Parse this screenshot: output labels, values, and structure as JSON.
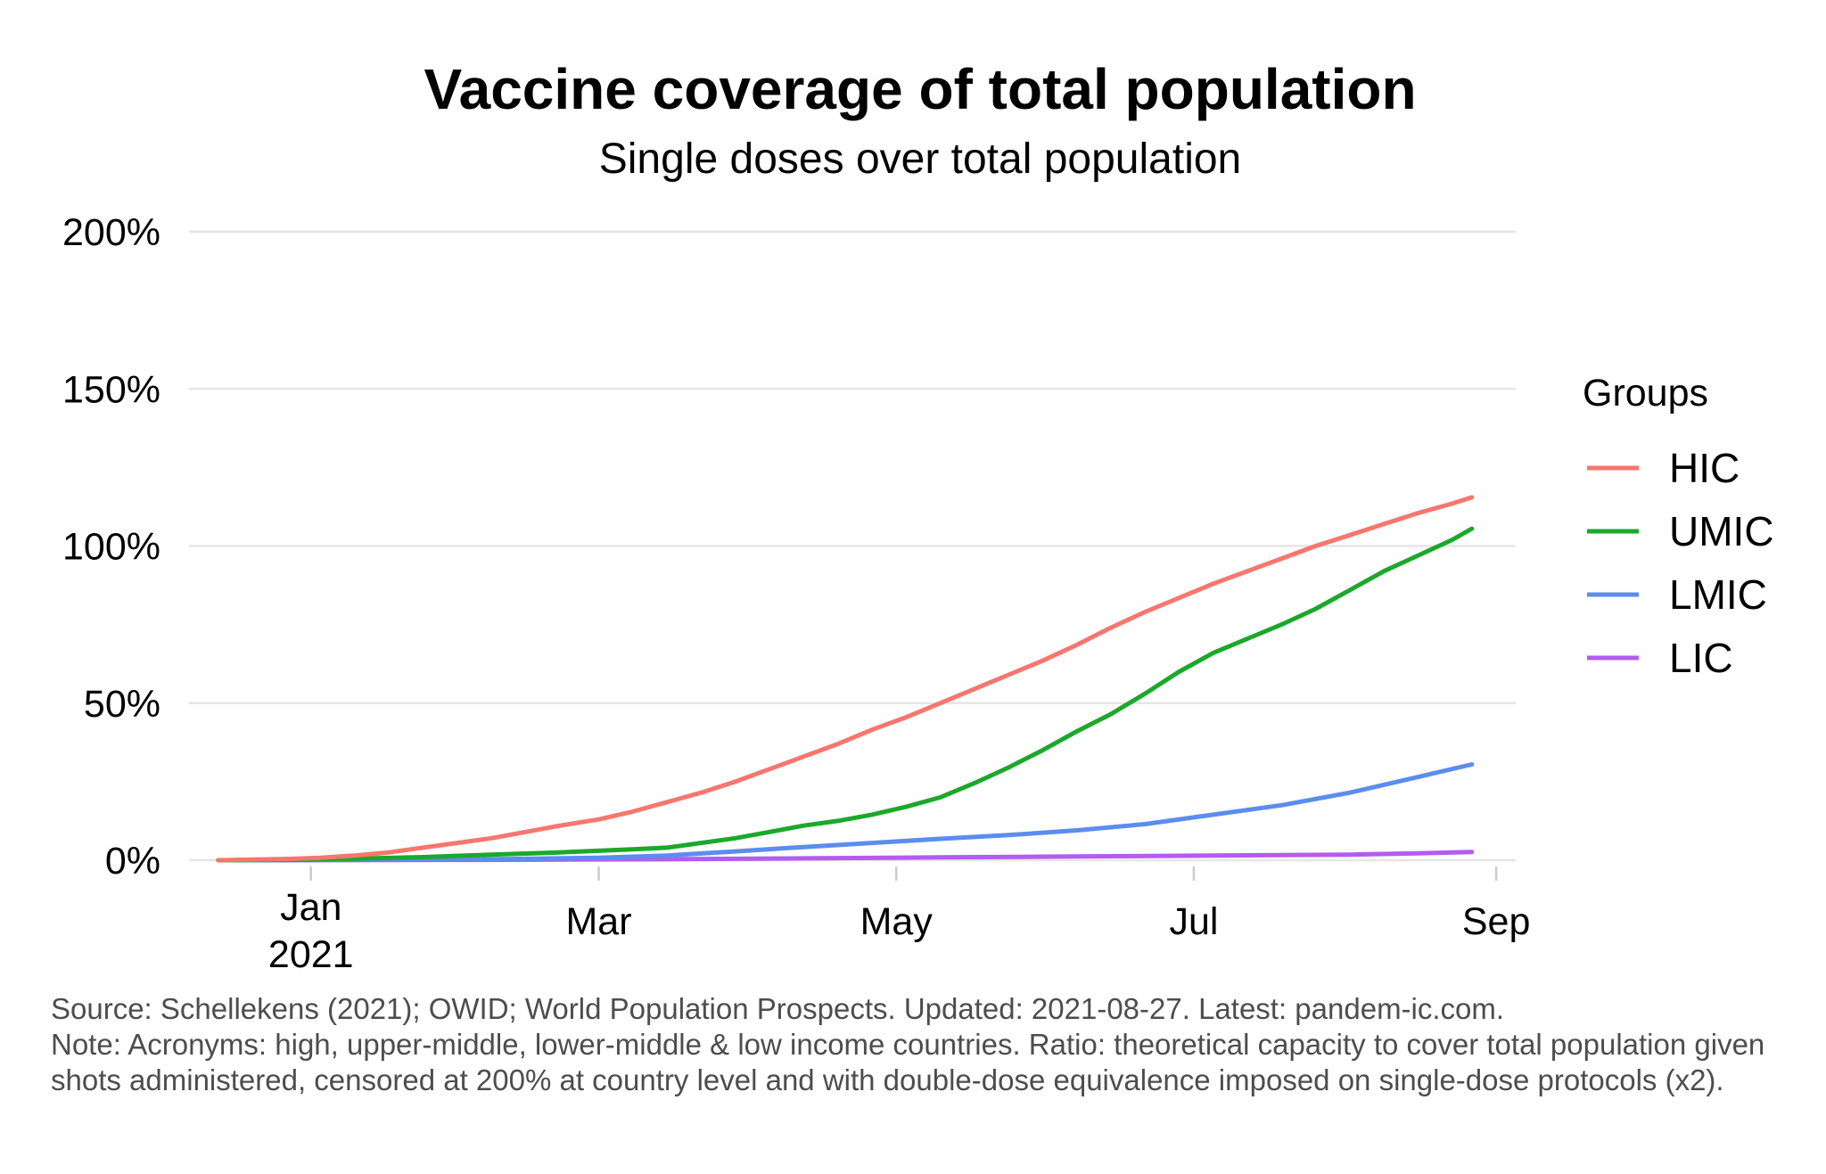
{
  "chart_data": {
    "type": "line",
    "title": "Vaccine coverage of total population",
    "subtitle": "Single doses over total population",
    "xlabel": "",
    "ylabel": "",
    "x_type": "date",
    "xlim": [
      "2020-12-07",
      "2021-09-05"
    ],
    "ylim": [
      0,
      200
    ],
    "y_ticks": [
      0,
      50,
      100,
      150,
      200
    ],
    "y_tick_labels": [
      "0%",
      "50%",
      "100%",
      "150%",
      "200%"
    ],
    "x_ticks": [
      {
        "date": "2021-01-01",
        "label": "Jan",
        "sublabel": "2021"
      },
      {
        "date": "2021-03-01",
        "label": "Mar",
        "sublabel": ""
      },
      {
        "date": "2021-05-01",
        "label": "May",
        "sublabel": ""
      },
      {
        "date": "2021-07-01",
        "label": "Jul",
        "sublabel": ""
      },
      {
        "date": "2021-09-01",
        "label": "Sep",
        "sublabel": ""
      }
    ],
    "grid": true,
    "legend": {
      "title": "Groups",
      "position": "right"
    },
    "series": [
      {
        "name": "HIC",
        "color": "#f8766d",
        "points": [
          {
            "x": "2020-12-13",
            "y": 0
          },
          {
            "x": "2020-12-20",
            "y": 0.2
          },
          {
            "x": "2020-12-27",
            "y": 0.4
          },
          {
            "x": "2021-01-03",
            "y": 0.8
          },
          {
            "x": "2021-01-10",
            "y": 1.5
          },
          {
            "x": "2021-01-17",
            "y": 2.5
          },
          {
            "x": "2021-01-24",
            "y": 4
          },
          {
            "x": "2021-01-31",
            "y": 5.5
          },
          {
            "x": "2021-02-07",
            "y": 7
          },
          {
            "x": "2021-02-14",
            "y": 9
          },
          {
            "x": "2021-02-21",
            "y": 11
          },
          {
            "x": "2021-03-01",
            "y": 13
          },
          {
            "x": "2021-03-08",
            "y": 15.5
          },
          {
            "x": "2021-03-15",
            "y": 18.5
          },
          {
            "x": "2021-03-22",
            "y": 21.5
          },
          {
            "x": "2021-03-29",
            "y": 25
          },
          {
            "x": "2021-04-05",
            "y": 29
          },
          {
            "x": "2021-04-12",
            "y": 33
          },
          {
            "x": "2021-04-19",
            "y": 37
          },
          {
            "x": "2021-04-26",
            "y": 41.5
          },
          {
            "x": "2021-05-03",
            "y": 45.5
          },
          {
            "x": "2021-05-10",
            "y": 50
          },
          {
            "x": "2021-05-17",
            "y": 54.5
          },
          {
            "x": "2021-05-24",
            "y": 59
          },
          {
            "x": "2021-05-31",
            "y": 63.5
          },
          {
            "x": "2021-06-07",
            "y": 68.5
          },
          {
            "x": "2021-06-14",
            "y": 74
          },
          {
            "x": "2021-06-21",
            "y": 79
          },
          {
            "x": "2021-06-28",
            "y": 83.5
          },
          {
            "x": "2021-07-05",
            "y": 88
          },
          {
            "x": "2021-07-12",
            "y": 92
          },
          {
            "x": "2021-07-19",
            "y": 96
          },
          {
            "x": "2021-07-26",
            "y": 100
          },
          {
            "x": "2021-08-02",
            "y": 103.5
          },
          {
            "x": "2021-08-09",
            "y": 107
          },
          {
            "x": "2021-08-16",
            "y": 110.5
          },
          {
            "x": "2021-08-23",
            "y": 113.5
          },
          {
            "x": "2021-08-27",
            "y": 115.5
          }
        ]
      },
      {
        "name": "UMIC",
        "color": "#1ca82b",
        "points": [
          {
            "x": "2020-12-13",
            "y": 0
          },
          {
            "x": "2020-12-27",
            "y": 0.1
          },
          {
            "x": "2021-01-10",
            "y": 0.5
          },
          {
            "x": "2021-01-24",
            "y": 1
          },
          {
            "x": "2021-02-07",
            "y": 1.8
          },
          {
            "x": "2021-02-21",
            "y": 2.5
          },
          {
            "x": "2021-03-01",
            "y": 3
          },
          {
            "x": "2021-03-08",
            "y": 3.5
          },
          {
            "x": "2021-03-15",
            "y": 4
          },
          {
            "x": "2021-03-22",
            "y": 5.5
          },
          {
            "x": "2021-03-29",
            "y": 7
          },
          {
            "x": "2021-04-05",
            "y": 9
          },
          {
            "x": "2021-04-12",
            "y": 11
          },
          {
            "x": "2021-04-19",
            "y": 12.5
          },
          {
            "x": "2021-04-26",
            "y": 14.5
          },
          {
            "x": "2021-05-03",
            "y": 17
          },
          {
            "x": "2021-05-10",
            "y": 20
          },
          {
            "x": "2021-05-17",
            "y": 24.5
          },
          {
            "x": "2021-05-24",
            "y": 29.5
          },
          {
            "x": "2021-05-31",
            "y": 35
          },
          {
            "x": "2021-06-07",
            "y": 41
          },
          {
            "x": "2021-06-14",
            "y": 46.5
          },
          {
            "x": "2021-06-21",
            "y": 53
          },
          {
            "x": "2021-06-28",
            "y": 60
          },
          {
            "x": "2021-07-05",
            "y": 66
          },
          {
            "x": "2021-07-12",
            "y": 70.5
          },
          {
            "x": "2021-07-19",
            "y": 75
          },
          {
            "x": "2021-07-26",
            "y": 80
          },
          {
            "x": "2021-08-02",
            "y": 86
          },
          {
            "x": "2021-08-09",
            "y": 92
          },
          {
            "x": "2021-08-16",
            "y": 97
          },
          {
            "x": "2021-08-23",
            "y": 102
          },
          {
            "x": "2021-08-27",
            "y": 105.5
          }
        ]
      },
      {
        "name": "LMIC",
        "color": "#5b8def",
        "points": [
          {
            "x": "2020-12-13",
            "y": 0
          },
          {
            "x": "2021-01-10",
            "y": 0.1
          },
          {
            "x": "2021-02-07",
            "y": 0.3
          },
          {
            "x": "2021-03-01",
            "y": 0.8
          },
          {
            "x": "2021-03-15",
            "y": 1.5
          },
          {
            "x": "2021-03-29",
            "y": 2.8
          },
          {
            "x": "2021-04-12",
            "y": 4.2
          },
          {
            "x": "2021-04-26",
            "y": 5.5
          },
          {
            "x": "2021-05-10",
            "y": 6.8
          },
          {
            "x": "2021-05-24",
            "y": 8
          },
          {
            "x": "2021-06-07",
            "y": 9.5
          },
          {
            "x": "2021-06-21",
            "y": 11.5
          },
          {
            "x": "2021-07-05",
            "y": 14.5
          },
          {
            "x": "2021-07-19",
            "y": 17.5
          },
          {
            "x": "2021-08-02",
            "y": 21.5
          },
          {
            "x": "2021-08-16",
            "y": 26.5
          },
          {
            "x": "2021-08-27",
            "y": 30.5
          }
        ]
      },
      {
        "name": "LIC",
        "color": "#b45cf0",
        "points": [
          {
            "x": "2020-12-13",
            "y": 0
          },
          {
            "x": "2021-02-07",
            "y": 0.1
          },
          {
            "x": "2021-03-15",
            "y": 0.3
          },
          {
            "x": "2021-04-12",
            "y": 0.6
          },
          {
            "x": "2021-05-10",
            "y": 0.9
          },
          {
            "x": "2021-06-07",
            "y": 1.2
          },
          {
            "x": "2021-07-05",
            "y": 1.5
          },
          {
            "x": "2021-08-02",
            "y": 1.8
          },
          {
            "x": "2021-08-16",
            "y": 2.2
          },
          {
            "x": "2021-08-27",
            "y": 2.6
          }
        ]
      }
    ]
  },
  "caption": {
    "line1": "Source: Schellekens (2021); OWID; World Population Prospects. Updated: 2021-08-27. Latest: pandem-ic.com.",
    "line2": "Note: Acronyms: high, upper-middle, lower-middle & low income countries. Ratio: theoretical capacity to cover total population given shots administered, censored at 200% at country level and with double-dose equivalence imposed on single-dose protocols (x2)."
  }
}
